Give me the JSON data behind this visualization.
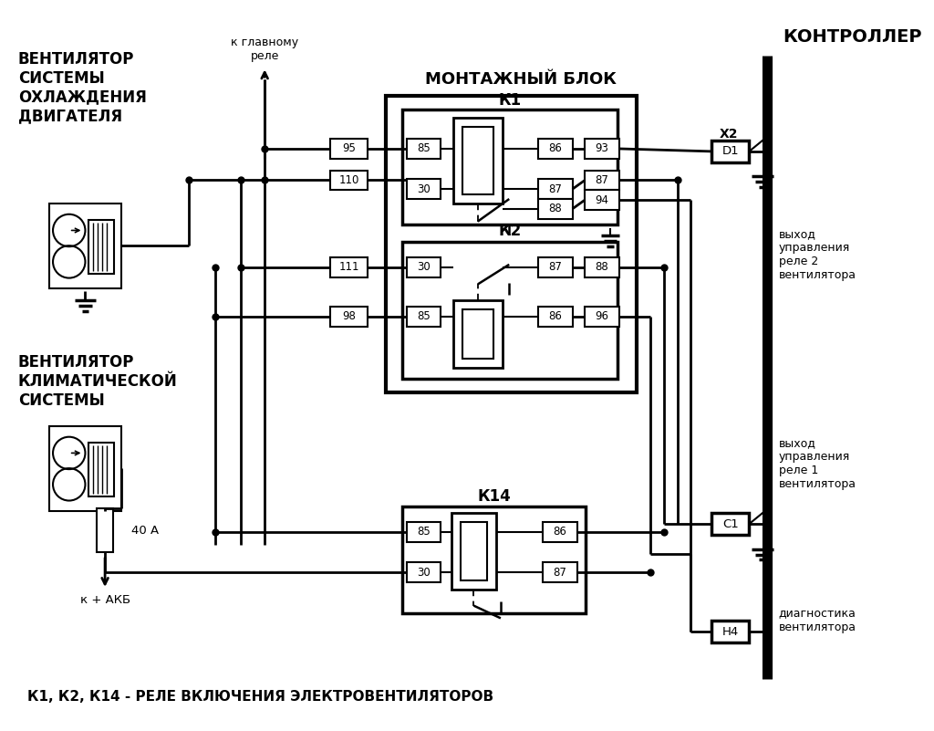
{
  "bg_color": "#ffffff",
  "line_color": "#000000",
  "title_bottom": "К1, К2, К14 - РЕЛЕ ВКЛЮЧЕНИЯ ЭЛЕКТРОВЕНТИЛЯТОРОВ",
  "label_ventilyator1": "ВЕНТИЛЯТОР\nСИСТЕМЫ\nОХЛАЖДЕНИЯ\nДВИГАТЕЛЯ",
  "label_ventilyator2": "ВЕНТИЛЯТОР\nКЛИМАТИЧЕСКОЙ\nСИСТЕМЫ",
  "label_montazh": "МОНТАЖНЫЙ БЛОК",
  "label_controller": "КОНТРОЛЛЕР",
  "label_k_glavnomu": "к главному\nреле",
  "label_k_akb": "к + АКБ",
  "label_40a": "40 А",
  "label_x2": "Х2",
  "label_d1": "D1",
  "label_c1": "C1",
  "label_h4": "Н4",
  "label_k1": "К1",
  "label_k2": "К2",
  "label_k14": "К14",
  "label_vyhod2": "выход\nуправления\nреле 2\nвентилятора",
  "label_vyhod1": "выход\nуправления\nреле 1\nвентилятора",
  "label_diagnostika": "диагностика\nвентилятора"
}
